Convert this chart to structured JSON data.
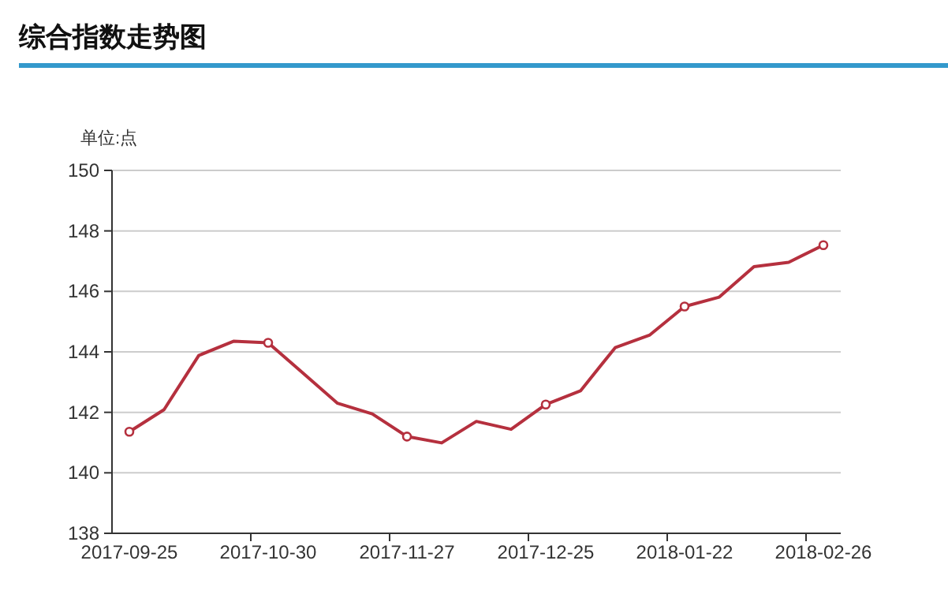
{
  "chart_data": {
    "type": "line",
    "title": "综合指数走势图",
    "ylabel": "单位:点",
    "categories": [
      "2017-09-25",
      null,
      null,
      null,
      "2017-10-30",
      null,
      null,
      null,
      "2017-11-27",
      null,
      null,
      null,
      "2017-12-25",
      null,
      null,
      null,
      "2018-01-22",
      null,
      null,
      null,
      "2018-02-26"
    ],
    "series": [
      {
        "type": "line",
        "color": "#b5303e",
        "values": [
          141.36,
          142.09,
          143.88,
          144.35,
          144.3,
          143.3,
          142.3,
          141.95,
          141.2,
          140.99,
          141.7,
          141.44,
          142.26,
          142.71,
          144.14,
          144.56,
          145.5,
          145.81,
          146.82,
          146.96,
          147.53
        ]
      },
      {
        "type": "scatter",
        "color": "#b5303e",
        "marker": "circle",
        "values": [
          141.36,
          null,
          null,
          null,
          144.3,
          null,
          null,
          null,
          141.2,
          null,
          null,
          null,
          142.26,
          null,
          null,
          null,
          145.5,
          null,
          null,
          null,
          147.53
        ]
      }
    ],
    "ylim": [
      138,
      150
    ],
    "yticks": [
      138,
      140,
      142,
      144,
      146,
      148,
      150
    ],
    "grid": "y"
  }
}
